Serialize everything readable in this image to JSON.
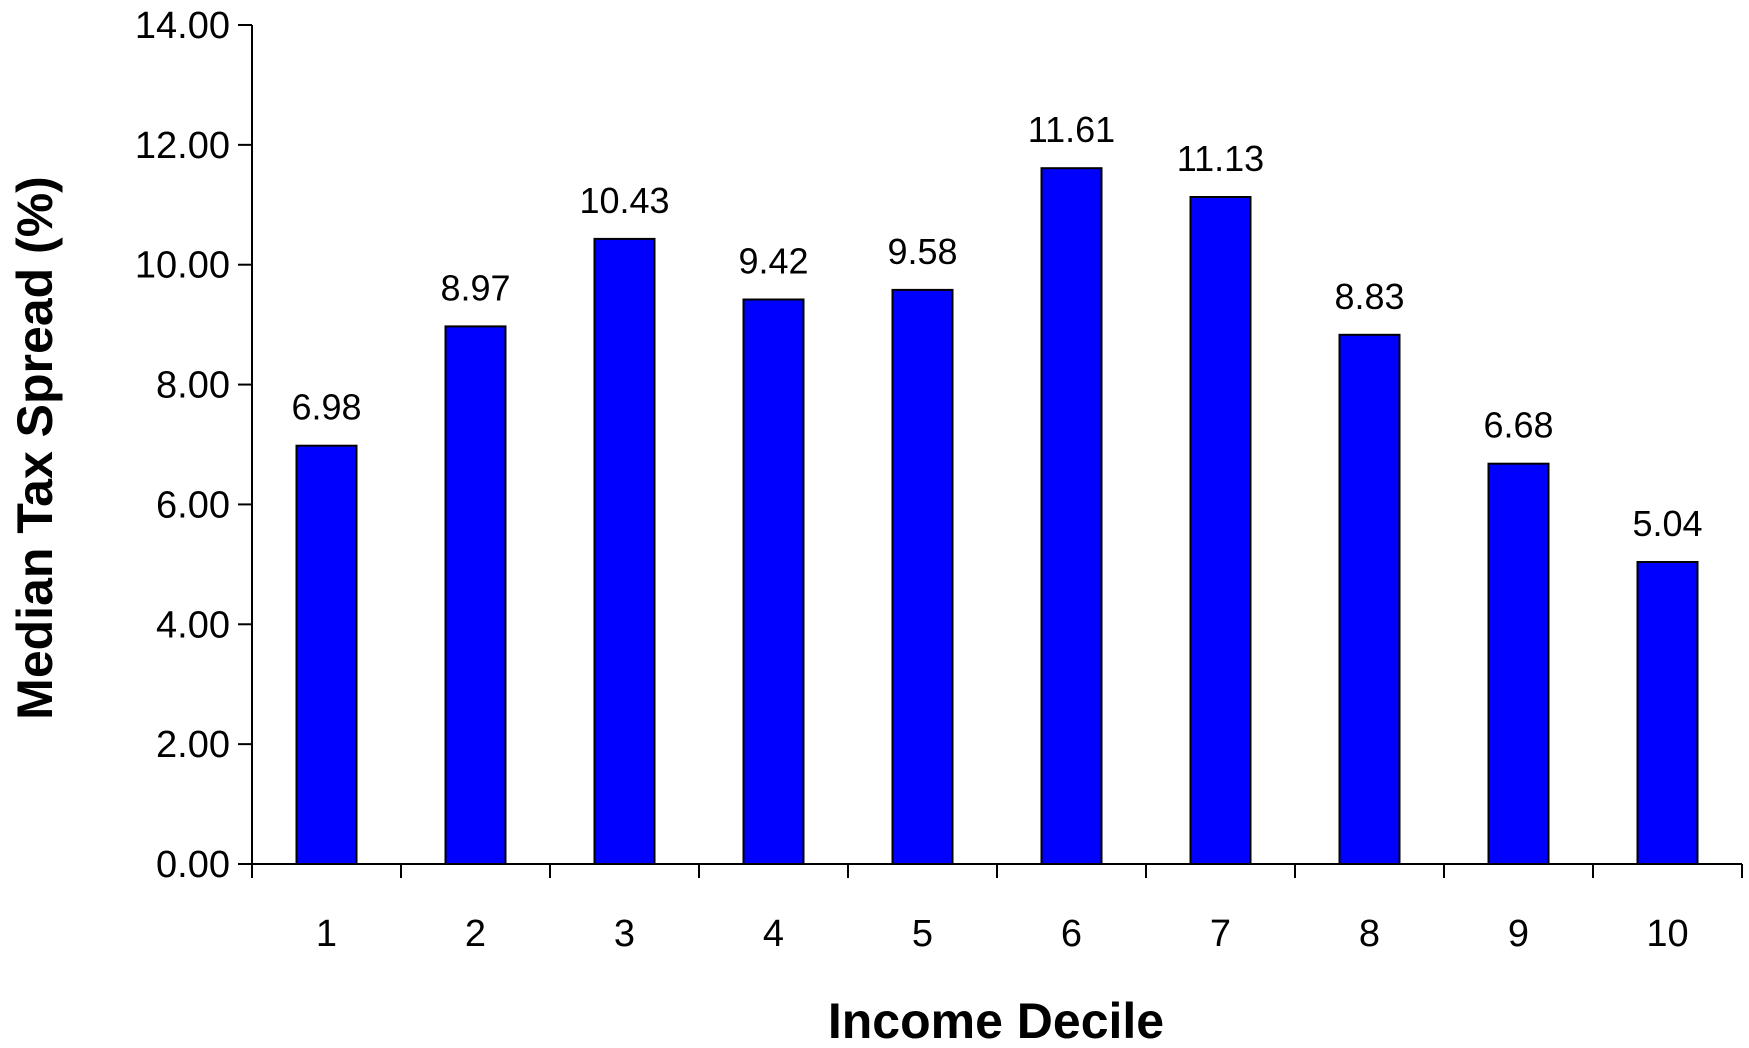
{
  "chart_data": {
    "type": "bar",
    "title": "",
    "xlabel": "Income Decile",
    "ylabel": "Median Tax Spread (%)",
    "categories": [
      "1",
      "2",
      "3",
      "4",
      "5",
      "6",
      "7",
      "8",
      "9",
      "10"
    ],
    "values": [
      6.98,
      8.97,
      10.43,
      9.42,
      9.58,
      11.61,
      11.13,
      8.83,
      6.68,
      5.04
    ],
    "data_labels": [
      "6.98",
      "8.97",
      "10.43",
      "9.42",
      "9.58",
      "11.61",
      "11.13",
      "8.83",
      "6.68",
      "5.04"
    ],
    "ylim": [
      0,
      14
    ],
    "yticks": [
      0,
      2,
      4,
      6,
      8,
      10,
      12,
      14
    ],
    "ytick_labels": [
      "0.00",
      "2.00",
      "4.00",
      "6.00",
      "8.00",
      "10.00",
      "12.00",
      "14.00"
    ],
    "grid": false,
    "legend": "none",
    "bar_color": "#0000ff"
  }
}
